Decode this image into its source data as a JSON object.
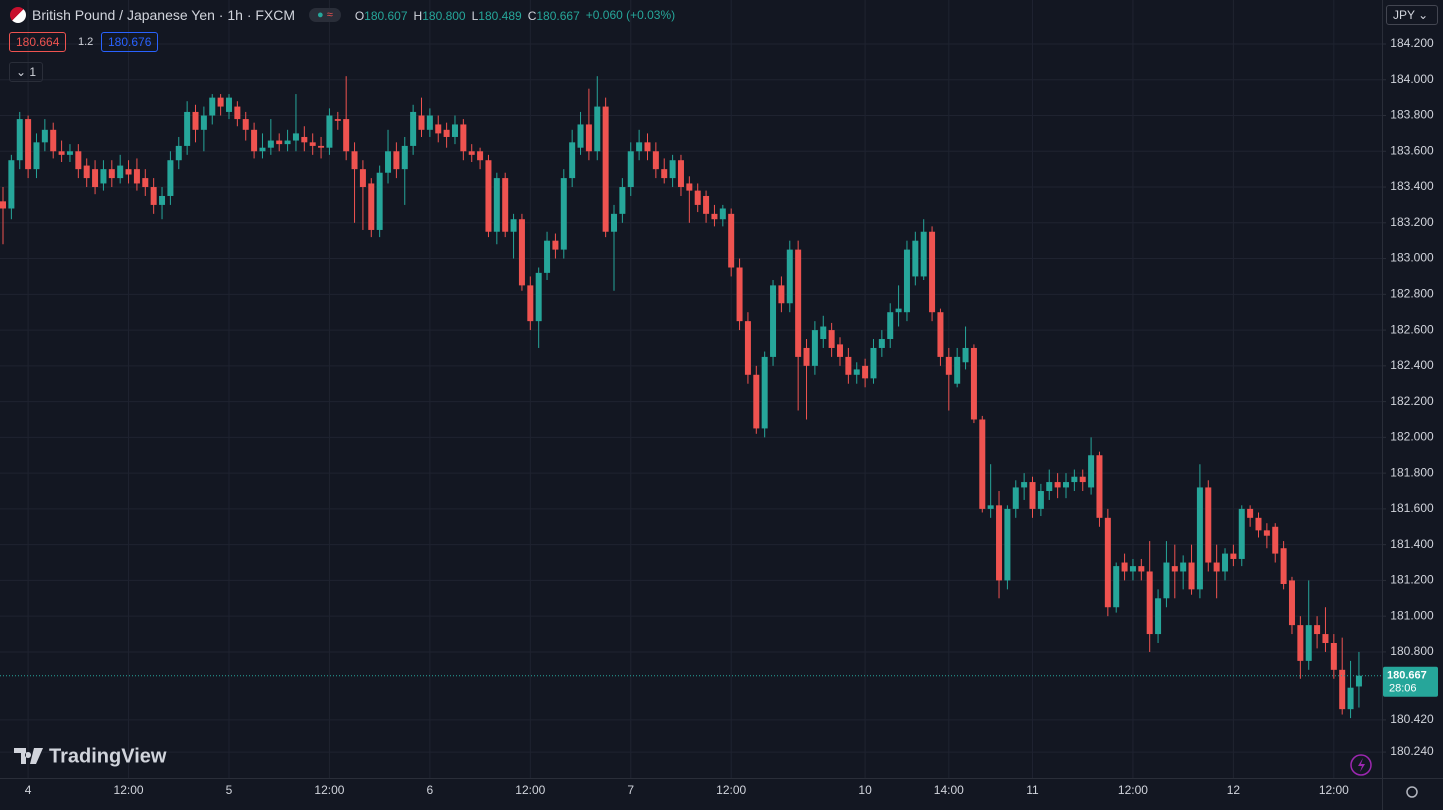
{
  "header": {
    "symbol": "British Pound / Japanese Yen · 1h · FXCM",
    "ohlc": [
      {
        "key": "O",
        "value": "180.607"
      },
      {
        "key": "H",
        "value": "180.800"
      },
      {
        "key": "L",
        "value": "180.489"
      },
      {
        "key": "C",
        "value": "180.667"
      }
    ],
    "change": "+0.060 (+0.03%)",
    "sell": "180.664",
    "spread": "1.2",
    "buy": "180.676",
    "indicators": "1",
    "currency": "JPY",
    "brand": "TradingView"
  },
  "chart_data": {
    "type": "candlestick",
    "up_color": "#26a69a",
    "down_color": "#ef5350",
    "grid": true,
    "ylim": [
      180.095,
      184.446
    ],
    "yticks": [
      {
        "value": 184.2,
        "label": "184.200"
      },
      {
        "value": 184.0,
        "label": "184.000"
      },
      {
        "value": 183.8,
        "label": "183.800"
      },
      {
        "value": 183.6,
        "label": "183.600"
      },
      {
        "value": 183.4,
        "label": "183.400"
      },
      {
        "value": 183.2,
        "label": "183.200"
      },
      {
        "value": 183.0,
        "label": "183.000"
      },
      {
        "value": 182.8,
        "label": "182.800"
      },
      {
        "value": 182.6,
        "label": "182.600"
      },
      {
        "value": 182.4,
        "label": "182.400"
      },
      {
        "value": 182.2,
        "label": "182.200"
      },
      {
        "value": 182.0,
        "label": "182.000"
      },
      {
        "value": 181.8,
        "label": "181.800"
      },
      {
        "value": 181.6,
        "label": "181.600"
      },
      {
        "value": 181.4,
        "label": "181.400"
      },
      {
        "value": 181.2,
        "label": "181.200"
      },
      {
        "value": 181.0,
        "label": "181.000"
      },
      {
        "value": 180.8,
        "label": "180.800"
      },
      {
        "value": 180.42,
        "label": "180.420"
      },
      {
        "value": 180.24,
        "label": "180.240"
      }
    ],
    "last_price": {
      "value": 180.667,
      "countdown": "28:06"
    },
    "categories": [
      null,
      null,
      null,
      "4",
      null,
      null,
      null,
      null,
      null,
      null,
      null,
      null,
      null,
      null,
      null,
      "12:00",
      null,
      null,
      null,
      null,
      null,
      null,
      null,
      null,
      null,
      null,
      null,
      "5",
      null,
      null,
      null,
      null,
      null,
      null,
      null,
      null,
      null,
      null,
      null,
      "12:00",
      null,
      null,
      null,
      null,
      null,
      null,
      null,
      null,
      null,
      null,
      null,
      "6",
      null,
      null,
      null,
      null,
      null,
      null,
      null,
      null,
      null,
      null,
      null,
      "12:00",
      null,
      null,
      null,
      null,
      null,
      null,
      null,
      null,
      null,
      null,
      null,
      "7",
      null,
      null,
      null,
      null,
      null,
      null,
      null,
      null,
      null,
      null,
      null,
      "12:00",
      null,
      null,
      null,
      null,
      null,
      null,
      null,
      null,
      null,
      null,
      null,
      null,
      null,
      null,
      null,
      "10",
      null,
      null,
      null,
      null,
      null,
      null,
      null,
      null,
      null,
      "14:00",
      null,
      null,
      null,
      null,
      null,
      null,
      null,
      null,
      null,
      "11",
      null,
      null,
      null,
      null,
      null,
      null,
      null,
      null,
      null,
      null,
      null,
      "12:00",
      null,
      null,
      null,
      null,
      null,
      null,
      null,
      null,
      null,
      null,
      null,
      "12",
      null,
      null,
      null,
      null,
      null,
      null,
      null,
      null,
      null,
      null,
      null,
      "12:00",
      null,
      null,
      null
    ],
    "ohlc": [
      [
        183.32,
        183.4,
        183.08,
        183.28
      ],
      [
        183.28,
        183.58,
        183.22,
        183.55
      ],
      [
        183.55,
        183.82,
        183.5,
        183.78
      ],
      [
        183.78,
        183.8,
        183.45,
        183.5
      ],
      [
        183.5,
        183.7,
        183.45,
        183.65
      ],
      [
        183.65,
        183.78,
        183.6,
        183.72
      ],
      [
        183.72,
        183.76,
        183.56,
        183.6
      ],
      [
        183.6,
        183.66,
        183.54,
        183.58
      ],
      [
        183.58,
        183.64,
        183.54,
        183.6
      ],
      [
        183.6,
        183.64,
        183.45,
        183.5
      ],
      [
        183.52,
        183.56,
        183.4,
        183.45
      ],
      [
        183.5,
        183.55,
        183.36,
        183.4
      ],
      [
        183.42,
        183.55,
        183.38,
        183.5
      ],
      [
        183.5,
        183.55,
        183.4,
        183.45
      ],
      [
        183.45,
        183.58,
        183.42,
        183.52
      ],
      [
        183.5,
        183.55,
        183.42,
        183.47
      ],
      [
        183.5,
        183.56,
        183.38,
        183.42
      ],
      [
        183.45,
        183.5,
        183.35,
        183.4
      ],
      [
        183.4,
        183.45,
        183.25,
        183.3
      ],
      [
        183.3,
        183.4,
        183.22,
        183.35
      ],
      [
        183.35,
        183.6,
        183.3,
        183.55
      ],
      [
        183.55,
        183.68,
        183.5,
        183.63
      ],
      [
        183.63,
        183.88,
        183.58,
        183.82
      ],
      [
        183.82,
        183.86,
        183.65,
        183.72
      ],
      [
        183.72,
        183.85,
        183.6,
        183.8
      ],
      [
        183.8,
        183.92,
        183.75,
        183.9
      ],
      [
        183.9,
        183.92,
        183.8,
        183.85
      ],
      [
        183.82,
        183.92,
        183.78,
        183.9
      ],
      [
        183.85,
        183.88,
        183.74,
        183.78
      ],
      [
        183.78,
        183.82,
        183.66,
        183.72
      ],
      [
        183.72,
        183.76,
        183.56,
        183.6
      ],
      [
        183.6,
        183.7,
        183.56,
        183.62
      ],
      [
        183.62,
        183.78,
        183.58,
        183.66
      ],
      [
        183.66,
        183.7,
        183.6,
        183.64
      ],
      [
        183.64,
        183.72,
        183.6,
        183.66
      ],
      [
        183.66,
        183.92,
        183.6,
        183.7
      ],
      [
        183.68,
        183.74,
        183.6,
        183.65
      ],
      [
        183.65,
        183.7,
        183.58,
        183.63
      ],
      [
        183.63,
        183.68,
        183.56,
        183.62
      ],
      [
        183.62,
        183.84,
        183.58,
        183.8
      ],
      [
        183.78,
        183.82,
        183.72,
        183.77
      ],
      [
        183.78,
        184.02,
        183.55,
        183.6
      ],
      [
        183.6,
        183.65,
        183.2,
        183.5
      ],
      [
        183.5,
        183.55,
        183.16,
        183.4
      ],
      [
        183.42,
        183.45,
        183.12,
        183.16
      ],
      [
        183.16,
        183.52,
        183.12,
        183.48
      ],
      [
        183.48,
        183.72,
        183.42,
        183.6
      ],
      [
        183.6,
        183.65,
        183.45,
        183.5
      ],
      [
        183.5,
        183.68,
        183.3,
        183.63
      ],
      [
        183.63,
        183.86,
        183.58,
        183.82
      ],
      [
        183.8,
        183.9,
        183.68,
        183.72
      ],
      [
        183.72,
        183.84,
        183.68,
        183.8
      ],
      [
        183.75,
        183.8,
        183.65,
        183.7
      ],
      [
        183.72,
        183.76,
        183.62,
        183.68
      ],
      [
        183.68,
        183.8,
        183.64,
        183.75
      ],
      [
        183.75,
        183.78,
        183.55,
        183.6
      ],
      [
        183.6,
        183.64,
        183.54,
        183.58
      ],
      [
        183.6,
        183.62,
        183.5,
        183.55
      ],
      [
        183.55,
        183.58,
        183.12,
        183.15
      ],
      [
        183.15,
        183.48,
        183.08,
        183.45
      ],
      [
        183.45,
        183.48,
        183.12,
        183.15
      ],
      [
        183.15,
        183.25,
        183.0,
        183.22
      ],
      [
        183.22,
        183.25,
        182.82,
        182.85
      ],
      [
        182.85,
        182.9,
        182.6,
        182.65
      ],
      [
        182.65,
        182.95,
        182.5,
        182.92
      ],
      [
        182.92,
        183.15,
        182.88,
        183.1
      ],
      [
        183.1,
        183.14,
        183.0,
        183.05
      ],
      [
        183.05,
        183.5,
        183.0,
        183.45
      ],
      [
        183.45,
        183.72,
        183.4,
        183.65
      ],
      [
        183.62,
        183.82,
        183.58,
        183.75
      ],
      [
        183.75,
        183.95,
        183.55,
        183.6
      ],
      [
        183.6,
        184.02,
        183.55,
        183.85
      ],
      [
        183.85,
        183.9,
        183.12,
        183.15
      ],
      [
        183.15,
        183.3,
        182.82,
        183.25
      ],
      [
        183.25,
        183.45,
        183.2,
        183.4
      ],
      [
        183.4,
        183.65,
        183.35,
        183.6
      ],
      [
        183.6,
        183.72,
        183.55,
        183.65
      ],
      [
        183.65,
        183.7,
        183.55,
        183.6
      ],
      [
        183.6,
        183.65,
        183.45,
        183.5
      ],
      [
        183.5,
        183.56,
        183.42,
        183.45
      ],
      [
        183.45,
        183.58,
        183.4,
        183.55
      ],
      [
        183.55,
        183.58,
        183.35,
        183.4
      ],
      [
        183.42,
        183.46,
        183.2,
        183.38
      ],
      [
        183.38,
        183.42,
        183.26,
        183.3
      ],
      [
        183.35,
        183.38,
        183.2,
        183.25
      ],
      [
        183.25,
        183.3,
        183.18,
        183.22
      ],
      [
        183.22,
        183.3,
        183.18,
        183.28
      ],
      [
        183.25,
        183.28,
        182.9,
        182.95
      ],
      [
        182.95,
        183.0,
        182.6,
        182.65
      ],
      [
        182.65,
        182.7,
        182.3,
        182.35
      ],
      [
        182.35,
        182.4,
        182.02,
        182.05
      ],
      [
        182.05,
        182.48,
        182.0,
        182.45
      ],
      [
        182.45,
        182.88,
        182.4,
        182.85
      ],
      [
        182.85,
        182.9,
        182.7,
        182.75
      ],
      [
        182.75,
        183.1,
        182.7,
        183.05
      ],
      [
        183.05,
        183.1,
        182.15,
        182.45
      ],
      [
        182.5,
        182.55,
        182.1,
        182.4
      ],
      [
        182.4,
        182.65,
        182.35,
        182.6
      ],
      [
        182.55,
        182.68,
        182.5,
        182.62
      ],
      [
        182.6,
        182.64,
        182.45,
        182.5
      ],
      [
        182.52,
        182.56,
        182.4,
        182.45
      ],
      [
        182.45,
        182.5,
        182.3,
        182.35
      ],
      [
        182.35,
        182.42,
        182.3,
        182.38
      ],
      [
        182.4,
        182.44,
        182.28,
        182.33
      ],
      [
        182.33,
        182.55,
        182.3,
        182.5
      ],
      [
        182.5,
        182.6,
        182.45,
        182.55
      ],
      [
        182.55,
        182.75,
        182.5,
        182.7
      ],
      [
        182.7,
        182.85,
        182.62,
        182.72
      ],
      [
        182.7,
        183.1,
        182.65,
        183.05
      ],
      [
        182.9,
        183.15,
        182.85,
        183.1
      ],
      [
        182.9,
        183.22,
        182.88,
        183.15
      ],
      [
        183.15,
        183.18,
        182.65,
        182.7
      ],
      [
        182.7,
        182.72,
        182.4,
        182.45
      ],
      [
        182.45,
        182.5,
        182.15,
        182.35
      ],
      [
        182.3,
        182.5,
        182.28,
        182.45
      ],
      [
        182.42,
        182.62,
        182.38,
        182.5
      ],
      [
        182.5,
        182.52,
        182.08,
        182.1
      ],
      [
        182.1,
        182.12,
        181.58,
        181.6
      ],
      [
        181.6,
        181.85,
        181.55,
        181.62
      ],
      [
        181.62,
        181.7,
        181.1,
        181.2
      ],
      [
        181.2,
        181.62,
        181.15,
        181.6
      ],
      [
        181.6,
        181.76,
        181.55,
        181.72
      ],
      [
        181.72,
        181.8,
        181.65,
        181.75
      ],
      [
        181.75,
        181.78,
        181.55,
        181.6
      ],
      [
        181.6,
        181.74,
        181.56,
        181.7
      ],
      [
        181.7,
        181.82,
        181.65,
        181.75
      ],
      [
        181.75,
        181.8,
        181.66,
        181.72
      ],
      [
        181.72,
        181.8,
        181.66,
        181.75
      ],
      [
        181.75,
        181.82,
        181.7,
        181.78
      ],
      [
        181.78,
        181.82,
        181.7,
        181.75
      ],
      [
        181.72,
        182.0,
        181.68,
        181.9
      ],
      [
        181.9,
        181.92,
        181.5,
        181.55
      ],
      [
        181.55,
        181.6,
        181.0,
        181.05
      ],
      [
        181.05,
        181.3,
        181.02,
        181.28
      ],
      [
        181.3,
        181.35,
        181.2,
        181.25
      ],
      [
        181.25,
        181.32,
        181.2,
        181.28
      ],
      [
        181.28,
        181.32,
        181.2,
        181.25
      ],
      [
        181.25,
        181.42,
        180.8,
        180.9
      ],
      [
        180.9,
        181.15,
        180.85,
        181.1
      ],
      [
        181.1,
        181.42,
        181.05,
        181.3
      ],
      [
        181.28,
        181.4,
        181.1,
        181.25
      ],
      [
        181.25,
        181.34,
        181.15,
        181.3
      ],
      [
        181.3,
        181.4,
        181.12,
        181.15
      ],
      [
        181.15,
        181.85,
        181.1,
        181.72
      ],
      [
        181.72,
        181.76,
        181.25,
        181.3
      ],
      [
        181.3,
        181.4,
        181.1,
        181.25
      ],
      [
        181.25,
        181.38,
        181.2,
        181.35
      ],
      [
        181.35,
        181.4,
        181.28,
        181.32
      ],
      [
        181.32,
        181.62,
        181.28,
        181.6
      ],
      [
        181.6,
        181.62,
        181.5,
        181.55
      ],
      [
        181.55,
        181.58,
        181.44,
        181.48
      ],
      [
        181.48,
        181.52,
        181.38,
        181.45
      ],
      [
        181.5,
        181.52,
        181.3,
        181.35
      ],
      [
        181.38,
        181.42,
        181.15,
        181.18
      ],
      [
        181.2,
        181.22,
        180.9,
        180.95
      ],
      [
        180.95,
        181.0,
        180.65,
        180.75
      ],
      [
        180.75,
        181.2,
        180.7,
        180.95
      ],
      [
        180.95,
        181.0,
        180.82,
        180.9
      ],
      [
        180.9,
        181.05,
        180.8,
        180.85
      ],
      [
        180.85,
        180.9,
        180.65,
        180.7
      ],
      [
        180.7,
        180.88,
        180.45,
        180.48
      ],
      [
        180.48,
        180.75,
        180.43,
        180.6
      ],
      [
        180.607,
        180.8,
        180.489,
        180.667
      ]
    ]
  }
}
